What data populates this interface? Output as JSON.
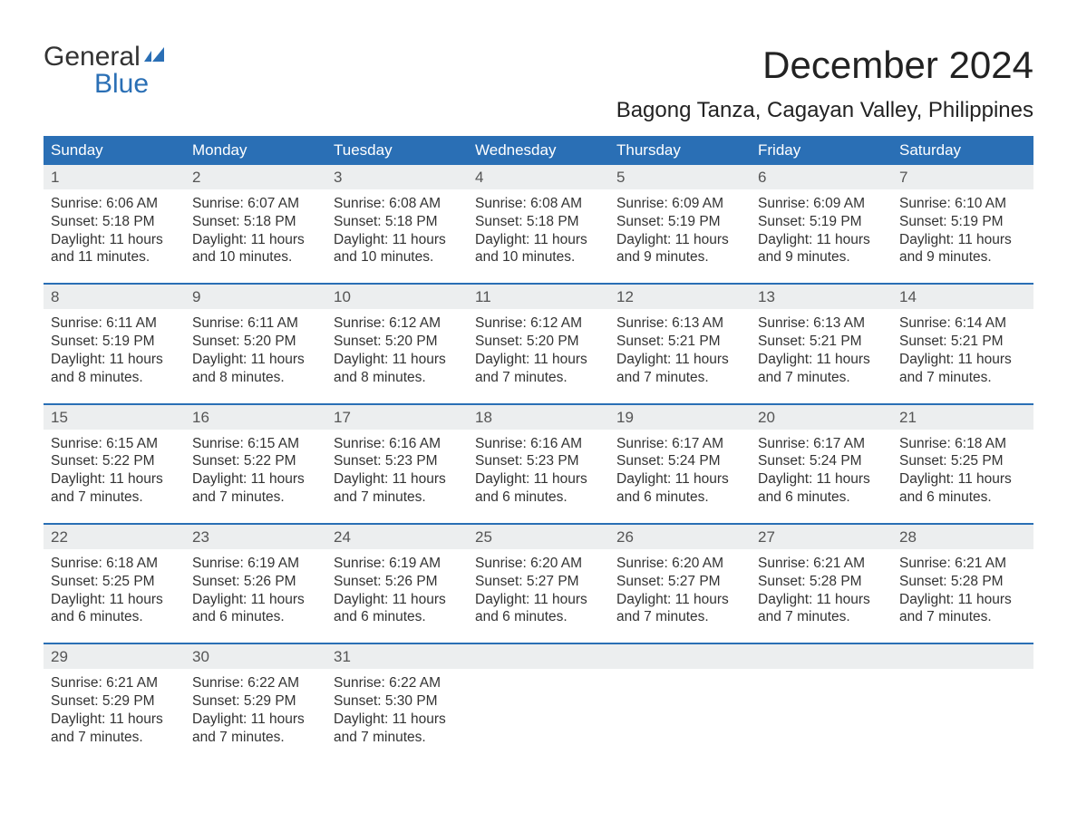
{
  "logo": {
    "word1": "General",
    "word2": "Blue",
    "color_text": "#333333",
    "color_blue": "#2a6fb5"
  },
  "title": "December 2024",
  "location": "Bagong Tanza, Cagayan Valley, Philippines",
  "header_bg": "#2a6fb5",
  "header_fg": "#ffffff",
  "daynum_bg": "#eceeef",
  "week_border": "#2a6fb5",
  "text_color": "#333333",
  "dow": [
    "Sunday",
    "Monday",
    "Tuesday",
    "Wednesday",
    "Thursday",
    "Friday",
    "Saturday"
  ],
  "weeks": [
    [
      {
        "n": "1",
        "sunrise": "6:06 AM",
        "sunset": "5:18 PM",
        "daylight": "11 hours and 11 minutes."
      },
      {
        "n": "2",
        "sunrise": "6:07 AM",
        "sunset": "5:18 PM",
        "daylight": "11 hours and 10 minutes."
      },
      {
        "n": "3",
        "sunrise": "6:08 AM",
        "sunset": "5:18 PM",
        "daylight": "11 hours and 10 minutes."
      },
      {
        "n": "4",
        "sunrise": "6:08 AM",
        "sunset": "5:18 PM",
        "daylight": "11 hours and 10 minutes."
      },
      {
        "n": "5",
        "sunrise": "6:09 AM",
        "sunset": "5:19 PM",
        "daylight": "11 hours and 9 minutes."
      },
      {
        "n": "6",
        "sunrise": "6:09 AM",
        "sunset": "5:19 PM",
        "daylight": "11 hours and 9 minutes."
      },
      {
        "n": "7",
        "sunrise": "6:10 AM",
        "sunset": "5:19 PM",
        "daylight": "11 hours and 9 minutes."
      }
    ],
    [
      {
        "n": "8",
        "sunrise": "6:11 AM",
        "sunset": "5:19 PM",
        "daylight": "11 hours and 8 minutes."
      },
      {
        "n": "9",
        "sunrise": "6:11 AM",
        "sunset": "5:20 PM",
        "daylight": "11 hours and 8 minutes."
      },
      {
        "n": "10",
        "sunrise": "6:12 AM",
        "sunset": "5:20 PM",
        "daylight": "11 hours and 8 minutes."
      },
      {
        "n": "11",
        "sunrise": "6:12 AM",
        "sunset": "5:20 PM",
        "daylight": "11 hours and 7 minutes."
      },
      {
        "n": "12",
        "sunrise": "6:13 AM",
        "sunset": "5:21 PM",
        "daylight": "11 hours and 7 minutes."
      },
      {
        "n": "13",
        "sunrise": "6:13 AM",
        "sunset": "5:21 PM",
        "daylight": "11 hours and 7 minutes."
      },
      {
        "n": "14",
        "sunrise": "6:14 AM",
        "sunset": "5:21 PM",
        "daylight": "11 hours and 7 minutes."
      }
    ],
    [
      {
        "n": "15",
        "sunrise": "6:15 AM",
        "sunset": "5:22 PM",
        "daylight": "11 hours and 7 minutes."
      },
      {
        "n": "16",
        "sunrise": "6:15 AM",
        "sunset": "5:22 PM",
        "daylight": "11 hours and 7 minutes."
      },
      {
        "n": "17",
        "sunrise": "6:16 AM",
        "sunset": "5:23 PM",
        "daylight": "11 hours and 7 minutes."
      },
      {
        "n": "18",
        "sunrise": "6:16 AM",
        "sunset": "5:23 PM",
        "daylight": "11 hours and 6 minutes."
      },
      {
        "n": "19",
        "sunrise": "6:17 AM",
        "sunset": "5:24 PM",
        "daylight": "11 hours and 6 minutes."
      },
      {
        "n": "20",
        "sunrise": "6:17 AM",
        "sunset": "5:24 PM",
        "daylight": "11 hours and 6 minutes."
      },
      {
        "n": "21",
        "sunrise": "6:18 AM",
        "sunset": "5:25 PM",
        "daylight": "11 hours and 6 minutes."
      }
    ],
    [
      {
        "n": "22",
        "sunrise": "6:18 AM",
        "sunset": "5:25 PM",
        "daylight": "11 hours and 6 minutes."
      },
      {
        "n": "23",
        "sunrise": "6:19 AM",
        "sunset": "5:26 PM",
        "daylight": "11 hours and 6 minutes."
      },
      {
        "n": "24",
        "sunrise": "6:19 AM",
        "sunset": "5:26 PM",
        "daylight": "11 hours and 6 minutes."
      },
      {
        "n": "25",
        "sunrise": "6:20 AM",
        "sunset": "5:27 PM",
        "daylight": "11 hours and 6 minutes."
      },
      {
        "n": "26",
        "sunrise": "6:20 AM",
        "sunset": "5:27 PM",
        "daylight": "11 hours and 7 minutes."
      },
      {
        "n": "27",
        "sunrise": "6:21 AM",
        "sunset": "5:28 PM",
        "daylight": "11 hours and 7 minutes."
      },
      {
        "n": "28",
        "sunrise": "6:21 AM",
        "sunset": "5:28 PM",
        "daylight": "11 hours and 7 minutes."
      }
    ],
    [
      {
        "n": "29",
        "sunrise": "6:21 AM",
        "sunset": "5:29 PM",
        "daylight": "11 hours and 7 minutes."
      },
      {
        "n": "30",
        "sunrise": "6:22 AM",
        "sunset": "5:29 PM",
        "daylight": "11 hours and 7 minutes."
      },
      {
        "n": "31",
        "sunrise": "6:22 AM",
        "sunset": "5:30 PM",
        "daylight": "11 hours and 7 minutes."
      },
      null,
      null,
      null,
      null
    ]
  ],
  "labels": {
    "sunrise": "Sunrise:",
    "sunset": "Sunset:",
    "daylight": "Daylight:"
  }
}
